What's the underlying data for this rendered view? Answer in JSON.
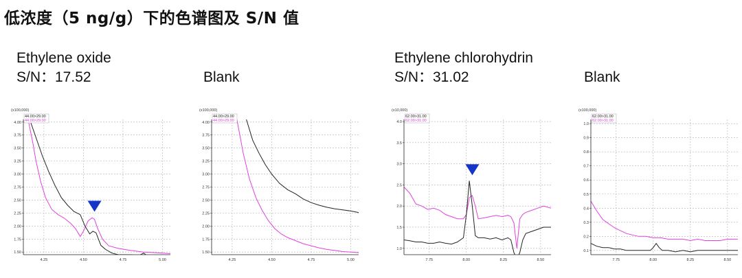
{
  "page": {
    "title": "低浓度（5 ng/g）下的色谱图及 S/N 值"
  },
  "panels": {
    "eo_sample": {
      "name": "Ethylene oxide",
      "sn": "S/N：17.52"
    },
    "eo_blank": {
      "name": "Blank"
    },
    "ech_sample": {
      "name": "Ethylene chlorohydrin",
      "sn": "S/N：31.02"
    },
    "ech_blank": {
      "name": "Blank"
    }
  },
  "colors": {
    "series_black": "#222222",
    "series_magenta": "#e040e0",
    "marker": "#1535c8",
    "grid": "#b0b0b0"
  },
  "chart_data": [
    {
      "type": "line",
      "scale_label": "(x100,000)",
      "legend": [
        "44.00>29.00",
        "44.00>29.00"
      ],
      "xlim": [
        4.12,
        5.05
      ],
      "ylim": [
        1.45,
        4.05
      ],
      "xticks": [
        4.25,
        4.5,
        4.75,
        5.0
      ],
      "xtick_labels": [
        "4.25",
        "4.50",
        "4.75",
        "5.00"
      ],
      "yticks": [
        1.5,
        1.75,
        2.0,
        2.25,
        2.5,
        2.75,
        3.0,
        3.25,
        3.5,
        3.75,
        4.0
      ],
      "ytick_labels": [
        "1.50",
        "1.75",
        "2.00",
        "2.25",
        "2.50",
        "2.75",
        "3.00",
        "3.25",
        "3.50",
        "3.75",
        "4.00"
      ],
      "series": [
        {
          "x": [
            4.15,
            4.18,
            4.2,
            4.23,
            4.26,
            4.3,
            4.34,
            4.38,
            4.42,
            4.45,
            4.48,
            4.5,
            4.53,
            4.555,
            4.57,
            4.59,
            4.62,
            4.66,
            4.72,
            4.8,
            4.88,
            4.95,
            5.0,
            5.05
          ],
          "y": [
            4.05,
            3.6,
            3.25,
            2.85,
            2.55,
            2.32,
            2.22,
            2.15,
            2.05,
            1.95,
            1.8,
            1.9,
            2.1,
            2.16,
            2.13,
            1.95,
            1.75,
            1.62,
            1.57,
            1.53,
            1.5,
            1.49,
            1.48,
            1.47
          ]
        },
        {
          "x": [
            4.16,
            4.2,
            4.24,
            4.28,
            4.32,
            4.36,
            4.4,
            4.44,
            4.48,
            4.51,
            4.54,
            4.56,
            4.58,
            4.61,
            4.64,
            4.68,
            4.72,
            4.76,
            4.8,
            4.85,
            4.88,
            4.9,
            4.94,
            4.98,
            5.02,
            5.05
          ],
          "y": [
            4.05,
            3.7,
            3.35,
            3.05,
            2.78,
            2.55,
            2.4,
            2.28,
            2.22,
            2.0,
            1.85,
            1.9,
            1.87,
            1.63,
            1.55,
            1.48,
            1.45,
            1.45,
            1.45,
            1.43,
            1.48,
            1.44,
            1.42,
            1.4,
            1.41,
            1.38
          ]
        }
      ],
      "marker": {
        "x": 4.57,
        "y": 2.38
      }
    },
    {
      "type": "line",
      "scale_label": "(x100,000)",
      "legend": [
        "44.00>29.00",
        "44.00>29.00"
      ],
      "xlim": [
        4.12,
        5.05
      ],
      "ylim": [
        1.45,
        4.05
      ],
      "xticks": [
        4.25,
        4.5,
        4.75,
        5.0
      ],
      "xtick_labels": [
        "4.25",
        "4.50",
        "4.75",
        "5.00"
      ],
      "yticks": [
        1.5,
        1.75,
        2.0,
        2.25,
        2.5,
        2.75,
        3.0,
        3.25,
        3.5,
        3.75,
        4.0
      ],
      "ytick_labels": [
        "1.50",
        "1.75",
        "2.00",
        "2.25",
        "2.50",
        "2.75",
        "3.00",
        "3.25",
        "3.50",
        "3.75",
        "4.00"
      ],
      "series": [
        {
          "x": [
            4.28,
            4.32,
            4.36,
            4.4,
            4.44,
            4.48,
            4.52,
            4.56,
            4.6,
            4.65,
            4.7,
            4.75,
            4.8,
            4.85,
            4.9,
            4.95,
            5.0,
            5.05
          ],
          "y": [
            4.05,
            3.4,
            2.9,
            2.55,
            2.3,
            2.1,
            1.95,
            1.85,
            1.78,
            1.72,
            1.66,
            1.62,
            1.58,
            1.55,
            1.53,
            1.51,
            1.5,
            1.49
          ]
        },
        {
          "x": [
            4.34,
            4.38,
            4.42,
            4.46,
            4.5,
            4.55,
            4.6,
            4.65,
            4.7,
            4.75,
            4.8,
            4.85,
            4.9,
            4.95,
            5.0,
            5.05
          ],
          "y": [
            4.05,
            3.65,
            3.4,
            3.18,
            3.0,
            2.82,
            2.7,
            2.62,
            2.52,
            2.45,
            2.4,
            2.36,
            2.33,
            2.31,
            2.29,
            2.26
          ]
        }
      ]
    },
    {
      "type": "line",
      "scale_label": "(x10,000)",
      "legend": [
        "62.00>31.00",
        "62.00>31.00"
      ],
      "xlim": [
        7.58,
        8.57
      ],
      "ylim": [
        0.85,
        4.05
      ],
      "xticks": [
        7.75,
        8.0,
        8.25,
        8.5
      ],
      "xtick_labels": [
        "7.75",
        "8.00",
        "8.25",
        "8.50"
      ],
      "yticks": [
        1.0,
        1.5,
        2.0,
        2.5,
        3.0,
        3.5,
        4.0
      ],
      "ytick_labels": [
        "1.0",
        "1.5",
        "2.0",
        "2.5",
        "3.0",
        "3.5",
        "4.0"
      ],
      "series": [
        {
          "x": [
            7.58,
            7.62,
            7.66,
            7.7,
            7.74,
            7.78,
            7.82,
            7.86,
            7.9,
            7.94,
            7.98,
            8.0,
            8.02,
            8.04,
            8.06,
            8.08,
            8.12,
            8.16,
            8.2,
            8.24,
            8.28,
            8.3,
            8.32,
            8.34,
            8.36,
            8.38,
            8.4,
            8.44,
            8.48,
            8.52,
            8.57
          ],
          "y": [
            2.45,
            2.3,
            2.05,
            2.0,
            1.92,
            1.95,
            1.9,
            1.8,
            1.75,
            1.7,
            1.7,
            1.8,
            2.2,
            2.25,
            2.0,
            1.7,
            1.72,
            1.75,
            1.78,
            1.75,
            1.78,
            1.75,
            1.6,
            1.0,
            1.7,
            1.8,
            1.85,
            1.9,
            1.95,
            2.0,
            1.95
          ]
        },
        {
          "x": [
            7.58,
            7.62,
            7.66,
            7.7,
            7.74,
            7.78,
            7.82,
            7.86,
            7.9,
            7.94,
            7.98,
            8.0,
            8.02,
            8.04,
            8.06,
            8.08,
            8.12,
            8.16,
            8.2,
            8.24,
            8.28,
            8.3,
            8.32,
            8.34,
            8.36,
            8.38,
            8.4,
            8.44,
            8.48,
            8.52,
            8.57
          ],
          "y": [
            1.2,
            1.18,
            1.15,
            1.15,
            1.12,
            1.12,
            1.15,
            1.12,
            1.1,
            1.15,
            1.25,
            1.8,
            2.6,
            2.0,
            1.3,
            1.25,
            1.25,
            1.22,
            1.25,
            1.2,
            1.25,
            1.2,
            0.9,
            0.75,
            0.9,
            1.2,
            1.35,
            1.4,
            1.45,
            1.5,
            1.5
          ]
        }
      ],
      "marker": {
        "x": 8.04,
        "y": 2.86
      }
    },
    {
      "type": "line",
      "scale_label": "(x100,000)",
      "legend": [
        "62.00>31.00",
        "62.00>31.00"
      ],
      "xlim": [
        7.58,
        8.57
      ],
      "ylim": [
        0.07,
        1.03
      ],
      "xticks": [
        7.75,
        8.0,
        8.25,
        8.5
      ],
      "xtick_labels": [
        "7.75",
        "8.00",
        "8.25",
        "8.50"
      ],
      "yticks": [
        0.1,
        0.2,
        0.3,
        0.4,
        0.5,
        0.6,
        0.7,
        0.8,
        0.9,
        1.0
      ],
      "ytick_labels": [
        "0.1",
        "0.2",
        "0.3",
        "0.4",
        "0.5",
        "0.6",
        "0.7",
        "0.8",
        "0.9",
        "1.0"
      ],
      "series": [
        {
          "x": [
            7.58,
            7.62,
            7.66,
            7.7,
            7.74,
            7.78,
            7.82,
            7.86,
            7.9,
            7.95,
            8.0,
            8.05,
            8.1,
            8.15,
            8.2,
            8.25,
            8.3,
            8.35,
            8.4,
            8.45,
            8.5,
            8.57
          ],
          "y": [
            0.45,
            0.38,
            0.32,
            0.29,
            0.26,
            0.24,
            0.22,
            0.21,
            0.2,
            0.2,
            0.19,
            0.19,
            0.18,
            0.18,
            0.18,
            0.17,
            0.18,
            0.17,
            0.17,
            0.17,
            0.18,
            0.18
          ]
        },
        {
          "x": [
            7.58,
            7.62,
            7.66,
            7.7,
            7.74,
            7.78,
            7.82,
            7.86,
            7.9,
            7.95,
            7.98,
            8.0,
            8.02,
            8.04,
            8.06,
            8.1,
            8.15,
            8.2,
            8.25,
            8.3,
            8.35,
            8.4,
            8.45,
            8.5,
            8.57
          ],
          "y": [
            0.15,
            0.13,
            0.12,
            0.12,
            0.11,
            0.11,
            0.1,
            0.1,
            0.1,
            0.1,
            0.1,
            0.12,
            0.15,
            0.12,
            0.1,
            0.1,
            0.09,
            0.1,
            0.09,
            0.1,
            0.1,
            0.1,
            0.1,
            0.1,
            0.1
          ]
        }
      ]
    }
  ]
}
